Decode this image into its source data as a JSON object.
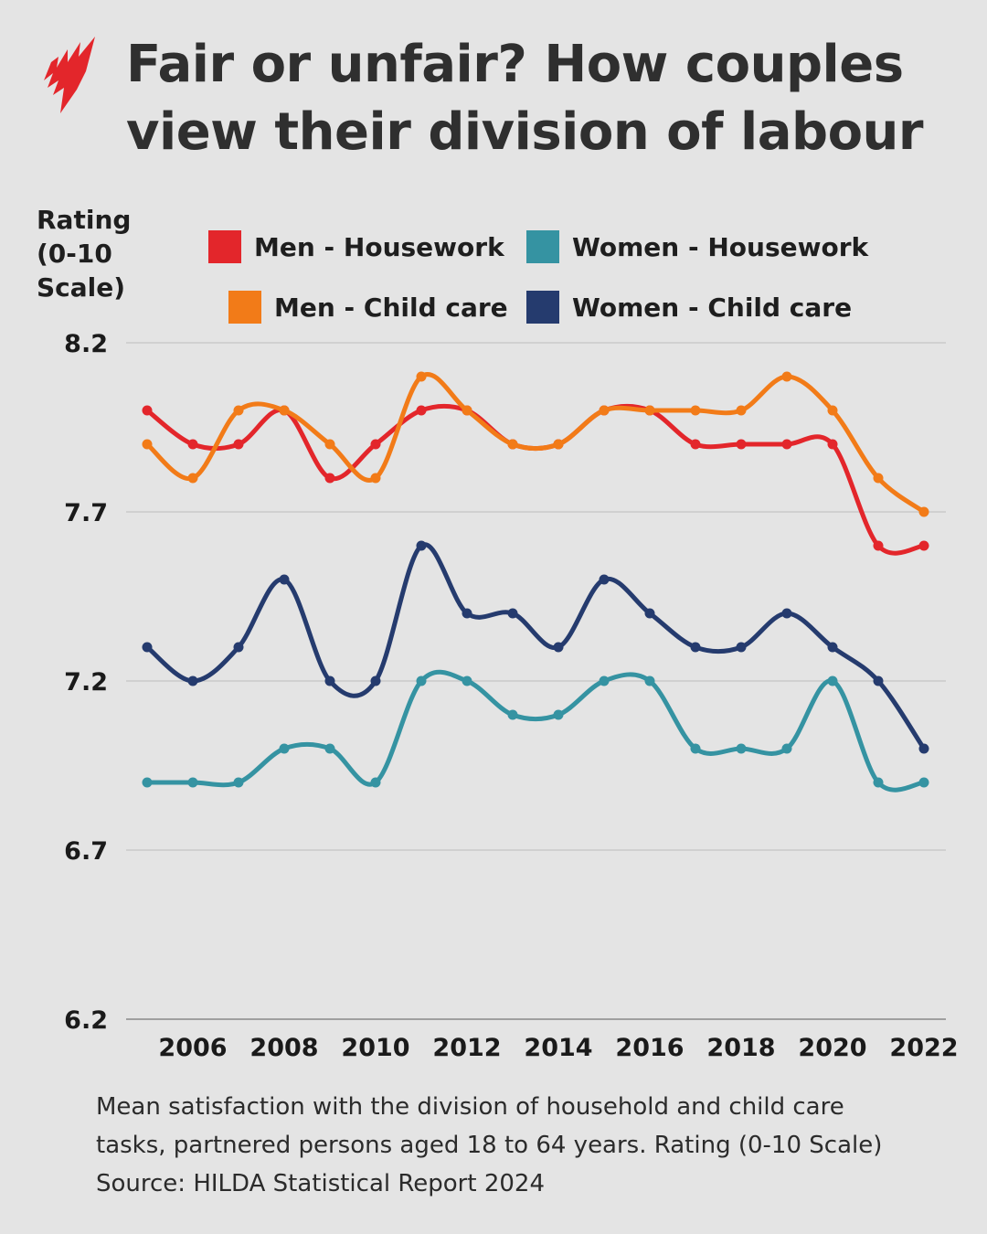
{
  "header": {
    "title_line1": "Fair or unfair? How couples",
    "title_line2": "view their division of labour",
    "logo": "SBS logo",
    "logo_color": "#e3262b"
  },
  "footer": {
    "line1": "Mean satisfaction with the division of household and child care",
    "line2": "tasks, partnered persons aged 18 to 64 years. Rating (0-10 Scale)",
    "line3": "Source: HILDA Statistical Report 2024"
  },
  "chart_data": {
    "type": "line",
    "title": "Fair or unfair? How couples view their division of labour",
    "ylabel": "Rating\n(0-10\nScale)",
    "xlabel": "",
    "ylim": [
      6.2,
      8.2
    ],
    "yticks": [
      "8.2",
      "7.7",
      "7.2",
      "6.7",
      "6.2"
    ],
    "xticks": [
      "2006",
      "2008",
      "2010",
      "2012",
      "2014",
      "2016",
      "2018",
      "2020",
      "2022"
    ],
    "grid": "horizontal",
    "legend_placement": "top",
    "x": [
      2005,
      2006,
      2007,
      2008,
      2009,
      2010,
      2011,
      2012,
      2013,
      2014,
      2015,
      2016,
      2017,
      2018,
      2019,
      2020,
      2021,
      2022
    ],
    "series": [
      {
        "name": "Men - Housework",
        "color": "#e3262b",
        "values": [
          8.0,
          7.9,
          7.9,
          8.0,
          7.8,
          7.9,
          8.0,
          8.0,
          7.9,
          7.9,
          8.0,
          8.0,
          7.9,
          7.9,
          7.9,
          7.9,
          7.6,
          7.6
        ]
      },
      {
        "name": "Women - Housework",
        "color": "#3593a2",
        "values": [
          6.9,
          6.9,
          6.9,
          7.0,
          7.0,
          6.9,
          7.2,
          7.2,
          7.1,
          7.1,
          7.2,
          7.2,
          7.0,
          7.0,
          7.0,
          7.2,
          6.9,
          6.9
        ]
      },
      {
        "name": "Men - Child care",
        "color": "#f27b18",
        "values": [
          7.9,
          7.8,
          8.0,
          8.0,
          7.9,
          7.8,
          8.1,
          8.0,
          7.9,
          7.9,
          8.0,
          8.0,
          8.0,
          8.0,
          8.1,
          8.0,
          7.8,
          7.7
        ]
      },
      {
        "name": "Women - Child care",
        "color": "#253b6e",
        "values": [
          7.3,
          7.2,
          7.3,
          7.5,
          7.2,
          7.2,
          7.6,
          7.4,
          7.4,
          7.3,
          7.5,
          7.4,
          7.3,
          7.3,
          7.4,
          7.3,
          7.2,
          7.0
        ]
      }
    ]
  }
}
